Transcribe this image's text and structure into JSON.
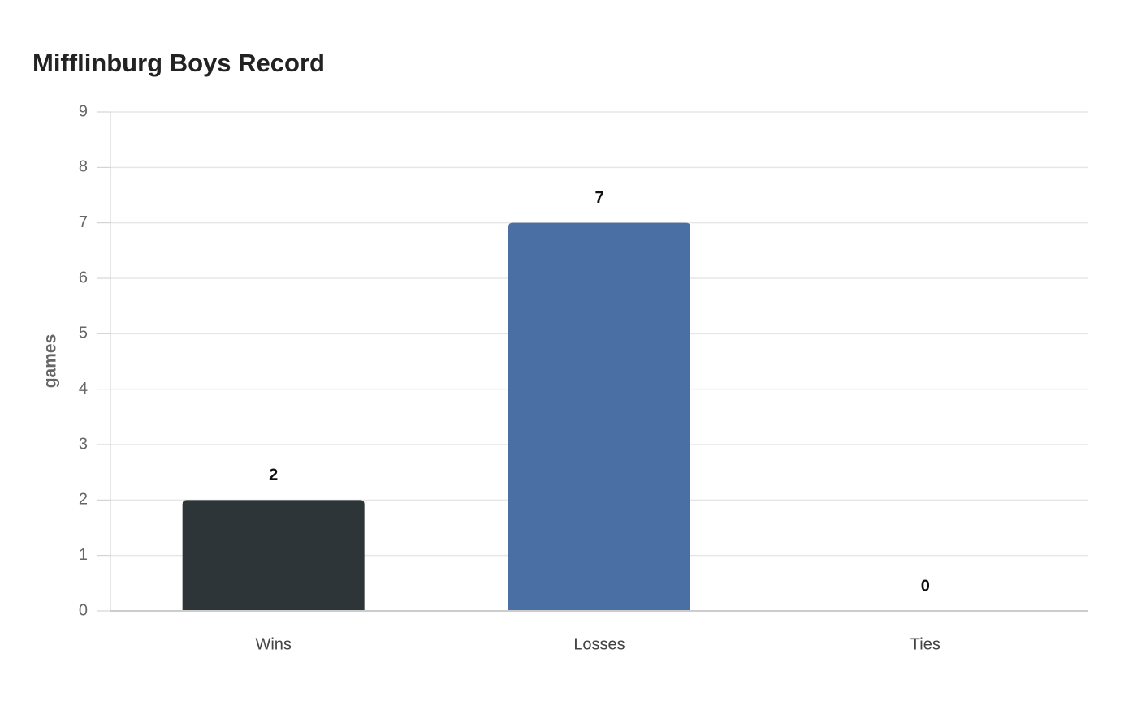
{
  "chart_data": {
    "type": "bar",
    "title": "Mifflinburg Boys Record",
    "y_label": "games",
    "categories": [
      "Wins",
      "Losses",
      "Ties"
    ],
    "values": [
      2,
      7,
      0
    ],
    "colors": [
      "#2e3538",
      "#4a6fa5",
      "#8fa9cf"
    ],
    "ylim": [
      0,
      9
    ],
    "yticks": [
      0,
      1,
      2,
      3,
      4,
      5,
      6,
      7,
      8,
      9
    ],
    "grid": true
  }
}
